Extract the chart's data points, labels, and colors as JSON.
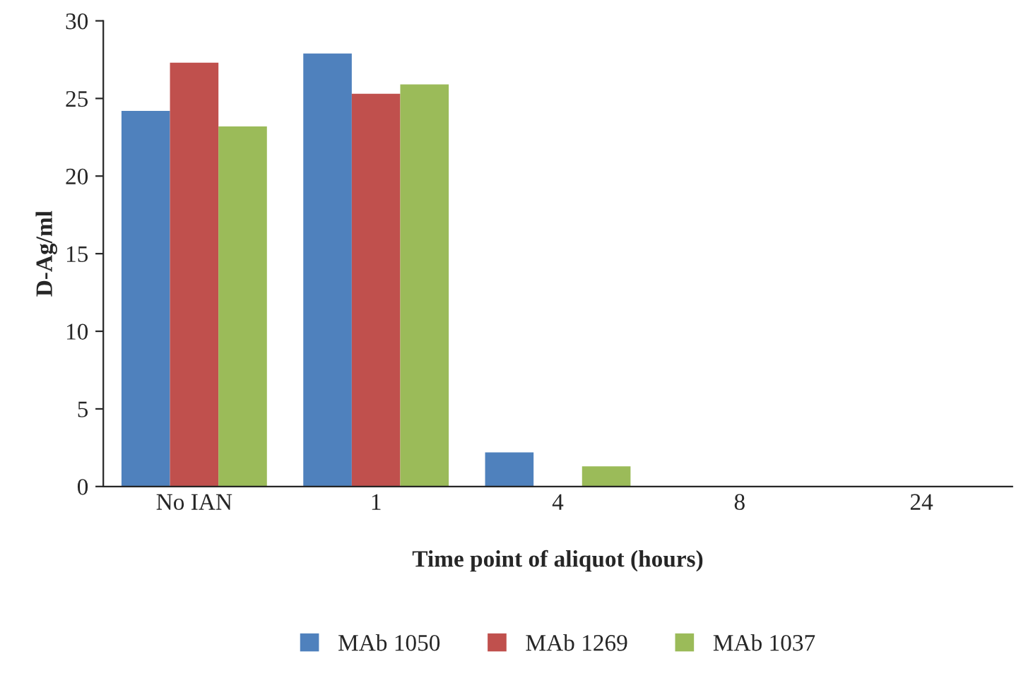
{
  "chart_data": {
    "type": "bar",
    "xlabel": "Time point of aliquot (hours)",
    "ylabel": "D-Ag/ml",
    "categories": [
      "No IAN",
      "1",
      "4",
      "8",
      "24"
    ],
    "series": [
      {
        "name": "MAb 1050",
        "color": "#4f81bd",
        "values": [
          24.2,
          27.9,
          2.2,
          0,
          0
        ]
      },
      {
        "name": "MAb 1269",
        "color": "#c0504d",
        "values": [
          27.3,
          25.3,
          0,
          0,
          0
        ]
      },
      {
        "name": "MAb 1037",
        "color": "#9bbb59",
        "values": [
          23.2,
          25.9,
          1.3,
          0,
          0
        ]
      }
    ],
    "ylim": [
      0,
      30
    ],
    "yticks": [
      0,
      5,
      10,
      15,
      20,
      25,
      30
    ],
    "grid": false,
    "legend": "bottom"
  }
}
